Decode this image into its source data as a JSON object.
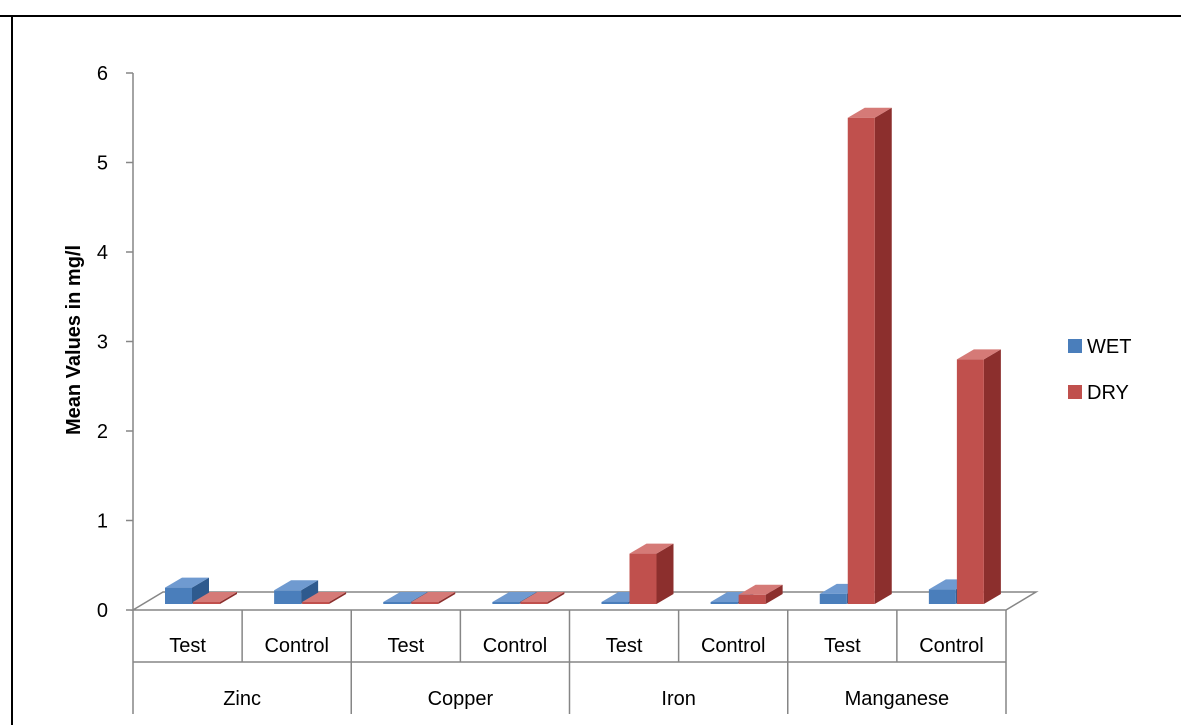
{
  "chart_data": {
    "type": "bar",
    "title": "",
    "ylabel": "Mean Values in mg/l",
    "xlabel": "",
    "ylim": [
      0,
      6
    ],
    "yticks": [
      "0",
      "1",
      "2",
      "3",
      "4",
      "5",
      "6"
    ],
    "groups": [
      {
        "label": "Zinc",
        "categories": [
          "Test",
          "Control"
        ]
      },
      {
        "label": "Copper",
        "categories": [
          "Test",
          "Control"
        ]
      },
      {
        "label": "Iron",
        "categories": [
          "Test",
          "Control"
        ]
      },
      {
        "label": "Manganese",
        "categories": [
          "Test",
          "Control"
        ]
      }
    ],
    "categories": [
      "Test",
      "Control",
      "Test",
      "Control",
      "Test",
      "Control",
      "Test",
      "Control"
    ],
    "series": [
      {
        "name": "WET",
        "values": [
          0.25,
          0.22,
          0.02,
          0.01,
          0.09,
          0.06,
          0.18,
          0.23
        ]
      },
      {
        "name": "DRY",
        "values": [
          0.07,
          0.03,
          0.01,
          0.03,
          0.63,
          0.17,
          5.5,
          2.8
        ]
      }
    ],
    "legend_position": "right",
    "grid": false
  },
  "colors": {
    "WET": {
      "front": "#4a7ebb",
      "side": "#2e5a8e",
      "top": "#6f9ad0"
    },
    "DRY": {
      "front": "#c0504d",
      "side": "#8c2f2d",
      "top": "#d57a77"
    },
    "axis": "#868686",
    "frame": "#000000"
  }
}
